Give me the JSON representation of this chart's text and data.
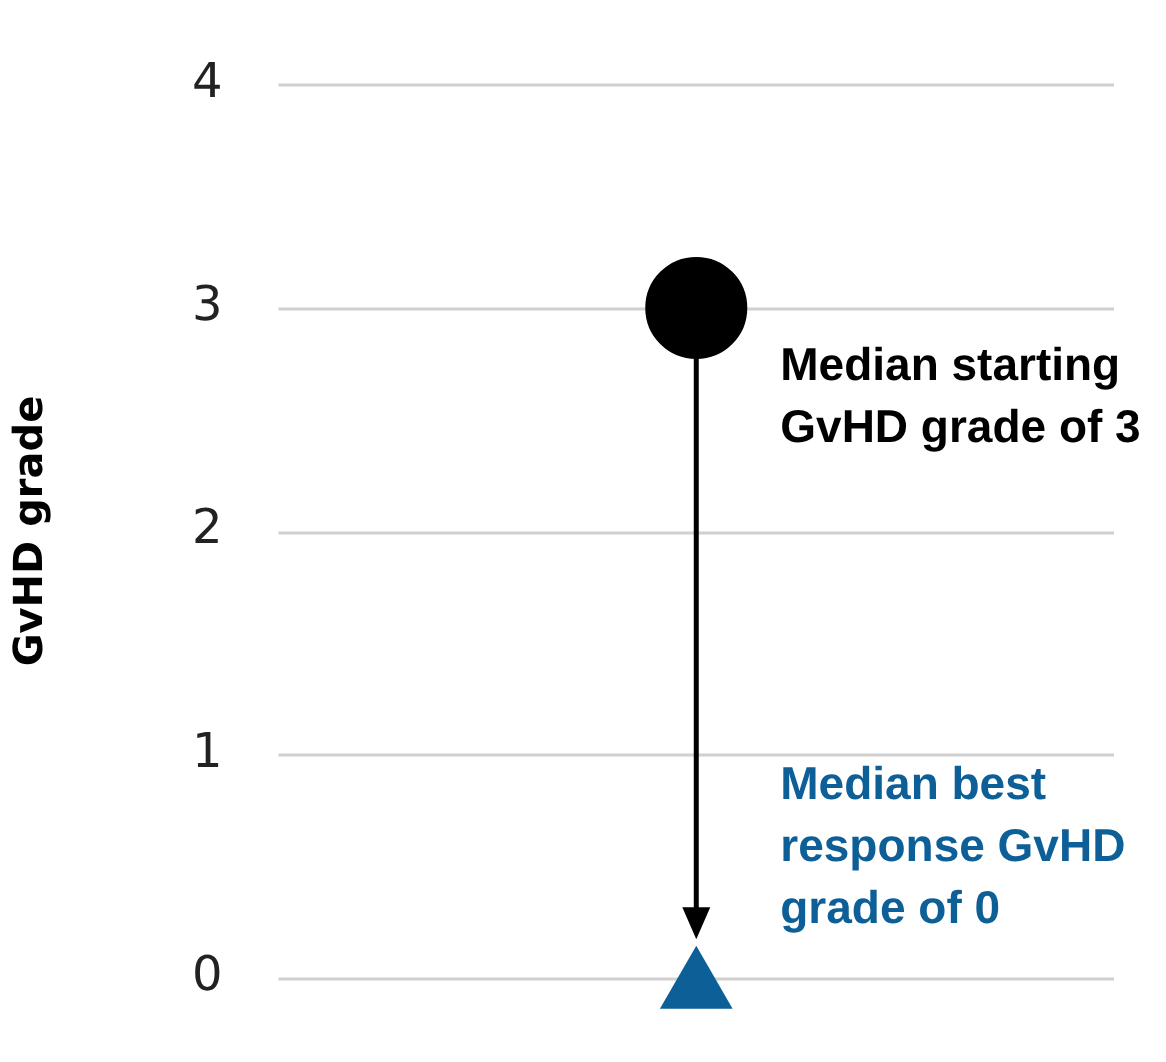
{
  "chart_data": {
    "type": "scatter",
    "ylabel": "GvHD grade",
    "categories": [
      null
    ],
    "series": [
      {
        "color": "#000000",
        "values": [
          3
        ],
        "marker": "circle"
      },
      {
        "color": "#0d5f98",
        "values": [
          0
        ],
        "marker": "triangle"
      }
    ],
    "ylim": [
      0,
      4
    ],
    "yticks": [
      0,
      1,
      2,
      3,
      4
    ],
    "grid": "y",
    "legend": false,
    "tick_labels": "y",
    "annotations": [
      "Median starting GvHD grade of 3",
      "Median best response GvHD grade of 0"
    ]
  }
}
